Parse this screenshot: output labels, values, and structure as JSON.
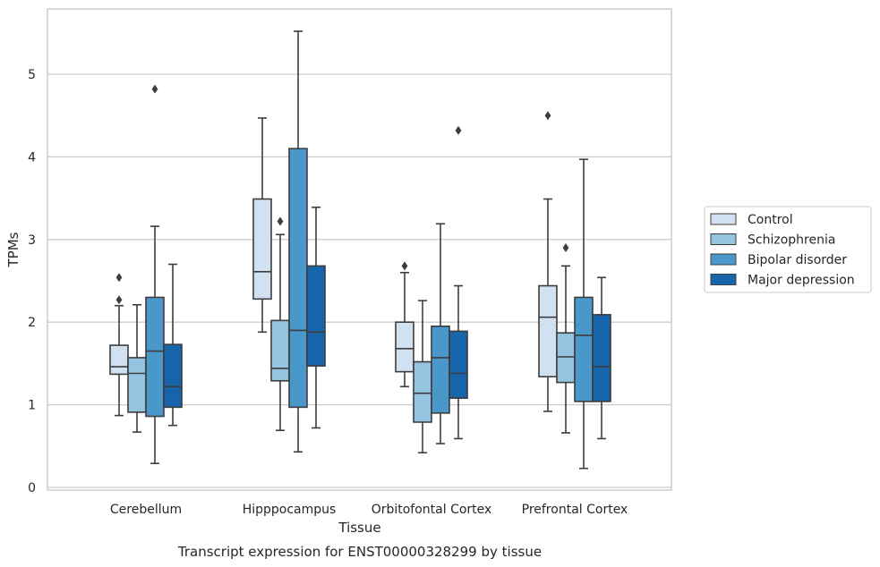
{
  "chart_data": {
    "type": "box",
    "xlabel": "Tissue",
    "ylabel": "TPMs",
    "caption": "Transcript expression for ENST00000328299 by tissue",
    "ylim": [
      -0.08,
      5.8
    ],
    "yticks": [
      0,
      1,
      2,
      3,
      4,
      5
    ],
    "grid": "horizontal",
    "legend_position": "right",
    "categories": [
      "Cerebellum",
      "Hipppocampus",
      "Orbitofontal Cortex",
      "Prefrontal Cortex"
    ],
    "series": [
      {
        "name": "Control",
        "color": "#d0e1f2",
        "boxes": [
          {
            "q1": 1.37,
            "median": 1.46,
            "q3": 1.72,
            "whisker_low": 0.87,
            "whisker_high": 2.2,
            "outliers": [
              2.27,
              2.54
            ]
          },
          {
            "q1": 2.28,
            "median": 2.61,
            "q3": 3.49,
            "whisker_low": 1.88,
            "whisker_high": 4.47,
            "outliers": []
          },
          {
            "q1": 1.4,
            "median": 1.68,
            "q3": 2.0,
            "whisker_low": 1.22,
            "whisker_high": 2.6,
            "outliers": [
              2.68
            ]
          },
          {
            "q1": 1.34,
            "median": 2.06,
            "q3": 2.44,
            "whisker_low": 0.92,
            "whisker_high": 3.49,
            "outliers": [
              4.5
            ]
          }
        ]
      },
      {
        "name": "Schizophrenia",
        "color": "#94c4df",
        "boxes": [
          {
            "q1": 0.91,
            "median": 1.38,
            "q3": 1.57,
            "whisker_low": 0.67,
            "whisker_high": 2.21,
            "outliers": []
          },
          {
            "q1": 1.29,
            "median": 1.44,
            "q3": 2.02,
            "whisker_low": 0.69,
            "whisker_high": 3.06,
            "outliers": [
              3.22
            ]
          },
          {
            "q1": 0.79,
            "median": 1.14,
            "q3": 1.52,
            "whisker_low": 0.42,
            "whisker_high": 2.26,
            "outliers": []
          },
          {
            "q1": 1.27,
            "median": 1.58,
            "q3": 1.87,
            "whisker_low": 0.66,
            "whisker_high": 2.68,
            "outliers": [
              2.9
            ]
          }
        ]
      },
      {
        "name": "Bipolar disorder",
        "color": "#4a98c9",
        "boxes": [
          {
            "q1": 0.86,
            "median": 1.65,
            "q3": 2.3,
            "whisker_low": 0.29,
            "whisker_high": 3.16,
            "outliers": [
              4.82
            ]
          },
          {
            "q1": 0.97,
            "median": 1.9,
            "q3": 4.1,
            "whisker_low": 0.43,
            "whisker_high": 5.52,
            "outliers": []
          },
          {
            "q1": 0.9,
            "median": 1.57,
            "q3": 1.95,
            "whisker_low": 0.53,
            "whisker_high": 3.19,
            "outliers": []
          },
          {
            "q1": 1.04,
            "median": 1.84,
            "q3": 2.3,
            "whisker_low": 0.23,
            "whisker_high": 3.97,
            "outliers": []
          }
        ]
      },
      {
        "name": "Major depression",
        "color": "#1764ab",
        "boxes": [
          {
            "q1": 0.97,
            "median": 1.22,
            "q3": 1.73,
            "whisker_low": 0.75,
            "whisker_high": 2.7,
            "outliers": []
          },
          {
            "q1": 1.47,
            "median": 1.88,
            "q3": 2.68,
            "whisker_low": 0.72,
            "whisker_high": 3.39,
            "outliers": []
          },
          {
            "q1": 1.08,
            "median": 1.38,
            "q3": 1.89,
            "whisker_low": 0.59,
            "whisker_high": 2.44,
            "outliers": [
              4.32
            ]
          },
          {
            "q1": 1.04,
            "median": 1.46,
            "q3": 2.09,
            "whisker_low": 0.59,
            "whisker_high": 2.54,
            "outliers": []
          }
        ]
      }
    ]
  }
}
